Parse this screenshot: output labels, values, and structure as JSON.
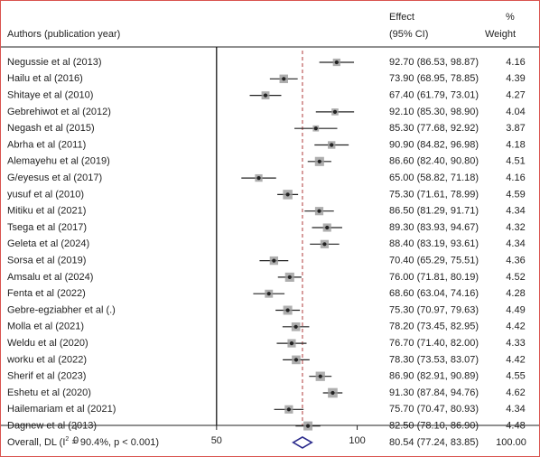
{
  "header": {
    "authors_label": "Authors (publication year)",
    "effect_label": "Effect",
    "ci_label": "(95% CI)",
    "percent_label": "%",
    "weight_label": "Weight"
  },
  "chart_data": {
    "type": "forest",
    "xlim": [
      -27,
      165
    ],
    "x_ticks": [
      0,
      50,
      100
    ],
    "null_line": 50,
    "overall_line": 80.54,
    "studies": [
      {
        "label": "Negussie et al (2013)",
        "effect": 92.7,
        "lower": 86.53,
        "upper": 98.87,
        "ci_text": "92.70 (86.53, 98.87)",
        "weight": "4.16"
      },
      {
        "label": "Hailu et al (2016)",
        "effect": 73.9,
        "lower": 68.95,
        "upper": 78.85,
        "ci_text": "73.90 (68.95, 78.85)",
        "weight": "4.39"
      },
      {
        "label": "Shitaye et al (2010)",
        "effect": 67.4,
        "lower": 61.79,
        "upper": 73.01,
        "ci_text": "67.40 (61.79, 73.01)",
        "weight": "4.27"
      },
      {
        "label": "Gebrehiwot et al (2012)",
        "effect": 92.1,
        "lower": 85.3,
        "upper": 98.9,
        "ci_text": "92.10 (85.30, 98.90)",
        "weight": "4.04"
      },
      {
        "label": "Negash et al (2015)",
        "effect": 85.3,
        "lower": 77.68,
        "upper": 92.92,
        "ci_text": "85.30 (77.68, 92.92)",
        "weight": "3.87"
      },
      {
        "label": "Abrha et al (2011)",
        "effect": 90.9,
        "lower": 84.82,
        "upper": 96.98,
        "ci_text": "90.90 (84.82, 96.98)",
        "weight": "4.18"
      },
      {
        "label": "Alemayehu et al (2019)",
        "effect": 86.6,
        "lower": 82.4,
        "upper": 90.8,
        "ci_text": "86.60 (82.40, 90.80)",
        "weight": "4.51"
      },
      {
        "label": "G/eyesus et al (2017)",
        "effect": 65.0,
        "lower": 58.82,
        "upper": 71.18,
        "ci_text": "65.00 (58.82, 71.18)",
        "weight": "4.16"
      },
      {
        "label": "yusuf et al (2010)",
        "effect": 75.3,
        "lower": 71.61,
        "upper": 78.99,
        "ci_text": "75.30 (71.61, 78.99)",
        "weight": "4.59"
      },
      {
        "label": "Mitiku et al (2021)",
        "effect": 86.5,
        "lower": 81.29,
        "upper": 91.71,
        "ci_text": "86.50 (81.29, 91.71)",
        "weight": "4.34"
      },
      {
        "label": "Tsega et al (2017)",
        "effect": 89.3,
        "lower": 83.93,
        "upper": 94.67,
        "ci_text": "89.30 (83.93, 94.67)",
        "weight": "4.32"
      },
      {
        "label": "Geleta et al (2024)",
        "effect": 88.4,
        "lower": 83.19,
        "upper": 93.61,
        "ci_text": "88.40 (83.19, 93.61)",
        "weight": "4.34"
      },
      {
        "label": "Sorsa et al (2019)",
        "effect": 70.4,
        "lower": 65.29,
        "upper": 75.51,
        "ci_text": "70.40 (65.29, 75.51)",
        "weight": "4.36"
      },
      {
        "label": "Amsalu et al (2024)",
        "effect": 76.0,
        "lower": 71.81,
        "upper": 80.19,
        "ci_text": "76.00 (71.81, 80.19)",
        "weight": "4.52"
      },
      {
        "label": "Fenta et al (2022)",
        "effect": 68.6,
        "lower": 63.04,
        "upper": 74.16,
        "ci_text": "68.60 (63.04, 74.16)",
        "weight": "4.28"
      },
      {
        "label": "Gebre-egziabher et al (.)",
        "effect": 75.3,
        "lower": 70.97,
        "upper": 79.63,
        "ci_text": "75.30 (70.97, 79.63)",
        "weight": "4.49"
      },
      {
        "label": "Molla et al (2021)",
        "effect": 78.2,
        "lower": 73.45,
        "upper": 82.95,
        "ci_text": "78.20 (73.45, 82.95)",
        "weight": "4.42"
      },
      {
        "label": "Weldu et al (2020)",
        "effect": 76.7,
        "lower": 71.4,
        "upper": 82.0,
        "ci_text": "76.70 (71.40, 82.00)",
        "weight": "4.33"
      },
      {
        "label": "worku et al (2022)",
        "effect": 78.3,
        "lower": 73.53,
        "upper": 83.07,
        "ci_text": "78.30 (73.53, 83.07)",
        "weight": "4.42"
      },
      {
        "label": "Sherif et al (2023)",
        "effect": 86.9,
        "lower": 82.91,
        "upper": 90.89,
        "ci_text": "86.90 (82.91, 90.89)",
        "weight": "4.55"
      },
      {
        "label": "Eshetu et al (2020)",
        "effect": 91.3,
        "lower": 87.84,
        "upper": 94.76,
        "ci_text": "91.30 (87.84, 94.76)",
        "weight": "4.62"
      },
      {
        "label": "Hailemariam et al (2021)",
        "effect": 75.7,
        "lower": 70.47,
        "upper": 80.93,
        "ci_text": "75.70 (70.47, 80.93)",
        "weight": "4.34"
      },
      {
        "label": "Dagnew et al (2013)",
        "effect": 82.5,
        "lower": 78.1,
        "upper": 86.9,
        "ci_text": "82.50 (78.10, 86.90)",
        "weight": "4.48"
      }
    ],
    "overall": {
      "label_prefix": "Overall, DL (I",
      "label_sup": "2",
      "label_suffix": " = 90.4%, p < 0.001)",
      "effect": 80.54,
      "lower": 77.24,
      "upper": 83.85,
      "ci_text": "80.54 (77.24, 83.85)",
      "weight": "100.00"
    },
    "colors": {
      "frame": "#d9534f",
      "overall_line": "#b03a3a",
      "diamond": "#2b2b8c",
      "marker": "#222222",
      "weight_box": "#9a9a9a"
    }
  }
}
